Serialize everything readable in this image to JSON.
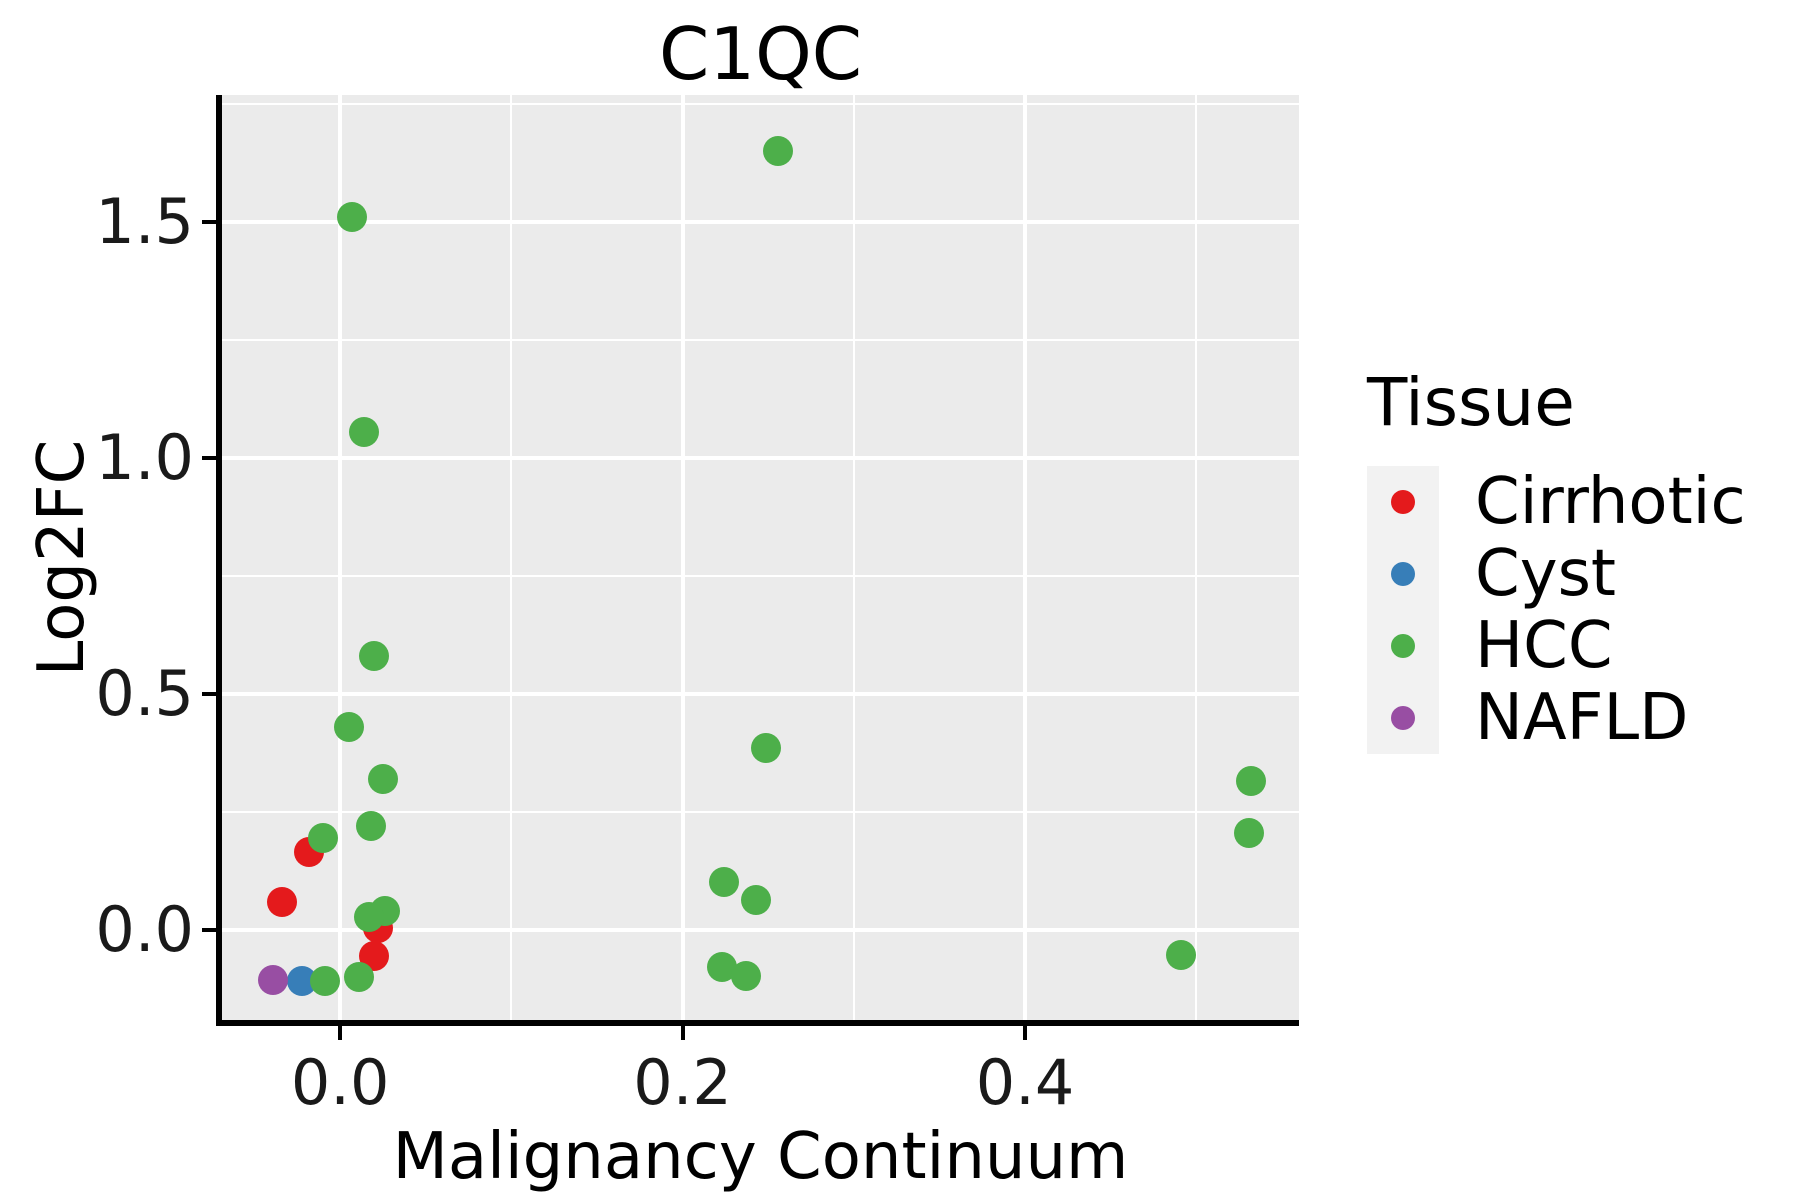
{
  "title": "C1QC",
  "x_axis": {
    "title": "Malignancy Continuum",
    "tick_labels": [
      "0.0",
      "0.2",
      "0.4"
    ]
  },
  "y_axis": {
    "title": "Log2FC",
    "tick_labels": [
      "0.0",
      "0.5",
      "1.0",
      "1.5"
    ]
  },
  "legend": {
    "title": "Tissue"
  },
  "colors": {
    "panel_background": "#EBEBEB",
    "gridline": "#FFFFFF",
    "axis_line": "#000000",
    "legend_key_background": "#F2F2F2",
    "cirrhotic": "#E41A1C",
    "cyst": "#377EB8",
    "hcc": "#4DAF4A",
    "nafld": "#984EA3"
  },
  "chart_data": {
    "type": "scatter",
    "title": "C1QC",
    "xlabel": "Malignancy Continuum",
    "ylabel": "Log2FC",
    "xlim": [
      -0.069,
      0.56
    ],
    "ylim": [
      -0.191,
      1.769
    ],
    "x_ticks": [
      0.0,
      0.2,
      0.4
    ],
    "y_ticks": [
      0.0,
      0.5,
      1.0,
      1.5
    ],
    "x_minor_ticks": [
      0.1,
      0.3,
      0.5
    ],
    "y_minor_ticks": [
      0.25,
      0.75,
      1.25,
      1.75
    ],
    "grid": true,
    "legend_title": "Tissue",
    "legend_position": "right",
    "series": [
      {
        "name": "Cirrhotic",
        "color": "#E41A1C",
        "points": [
          [
            -0.034,
            0.06
          ],
          [
            -0.018,
            0.165
          ],
          [
            0.022,
            0.003
          ],
          [
            0.02,
            -0.055
          ]
        ]
      },
      {
        "name": "Cyst",
        "color": "#377EB8",
        "points": [
          [
            -0.022,
            -0.108
          ]
        ]
      },
      {
        "name": "HCC",
        "color": "#4DAF4A",
        "points": [
          [
            0.007,
            1.51
          ],
          [
            0.014,
            1.055
          ],
          [
            0.02,
            0.58
          ],
          [
            0.005,
            0.43
          ],
          [
            0.025,
            0.32
          ],
          [
            0.018,
            0.22
          ],
          [
            -0.01,
            0.195
          ],
          [
            0.026,
            0.04
          ],
          [
            0.017,
            0.028
          ],
          [
            0.011,
            -0.1
          ],
          [
            -0.009,
            -0.108
          ],
          [
            0.256,
            1.65
          ],
          [
            0.249,
            0.386
          ],
          [
            0.224,
            0.102
          ],
          [
            0.243,
            0.064
          ],
          [
            0.223,
            -0.078
          ],
          [
            0.237,
            -0.097
          ],
          [
            0.532,
            0.315
          ],
          [
            0.531,
            0.205
          ],
          [
            0.491,
            -0.053
          ]
        ]
      },
      {
        "name": "NAFLD",
        "color": "#984EA3",
        "points": [
          [
            -0.039,
            -0.106
          ]
        ]
      }
    ]
  }
}
